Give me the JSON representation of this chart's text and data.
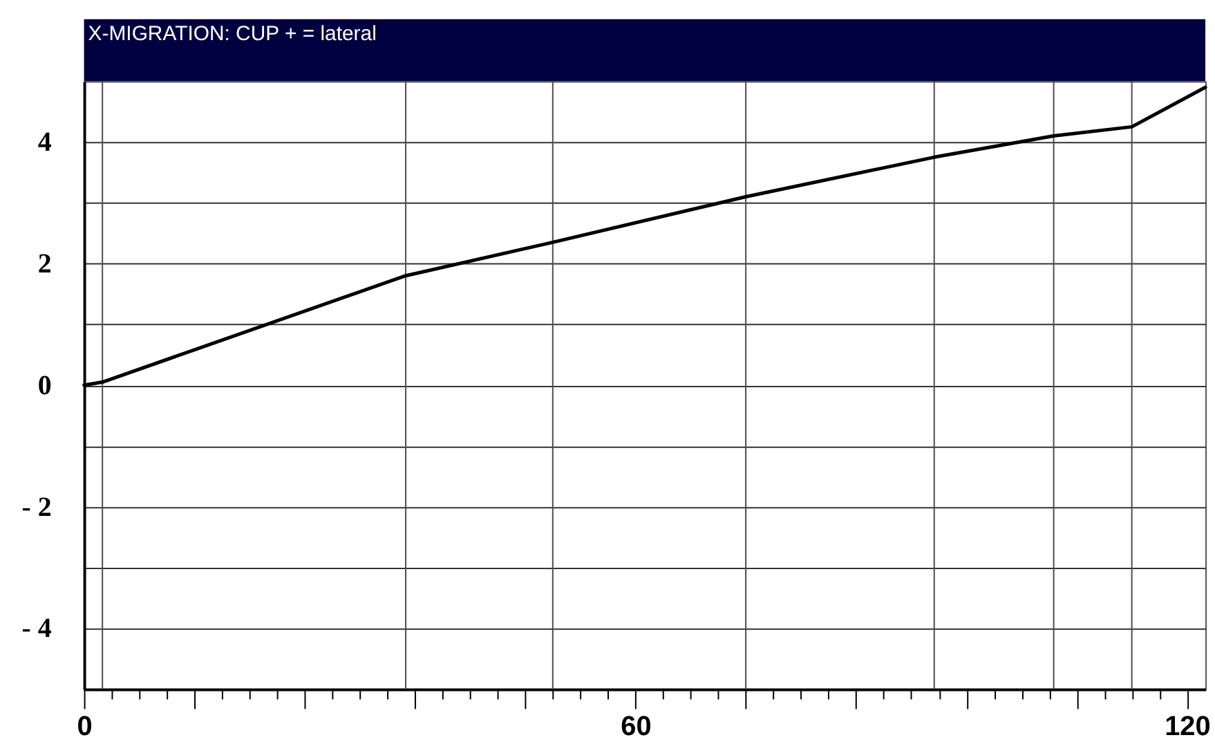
{
  "chart_data": {
    "type": "line",
    "title": "X-MIGRATION: CUP + = lateral",
    "x": [
      0,
      2,
      35,
      51,
      72,
      92.5,
      105.5,
      114,
      122
    ],
    "series": [
      {
        "color": "#000000",
        "values": [
          0,
          0.05,
          1.8,
          2.35,
          3.1,
          3.75,
          4.1,
          4.25,
          4.9
        ]
      }
    ],
    "xlim": [
      0,
      122
    ],
    "xticks": [
      0,
      {
        "value": 3,
        "label": null
      },
      {
        "value": 6,
        "label": null
      },
      {
        "value": 9,
        "label": null
      },
      {
        "value": 12,
        "label": null
      },
      {
        "value": 15,
        "label": null
      },
      {
        "value": 18,
        "label": null
      },
      {
        "value": 21,
        "label": null
      },
      {
        "value": 24,
        "label": null
      },
      {
        "value": 27,
        "label": null
      },
      {
        "value": 30,
        "label": null
      },
      {
        "value": 33,
        "label": null
      },
      {
        "value": 36,
        "label": null
      },
      {
        "value": 39,
        "label": null
      },
      {
        "value": 42,
        "label": null
      },
      {
        "value": 45,
        "label": null
      },
      {
        "value": 48,
        "label": null
      },
      {
        "value": 51,
        "label": null
      },
      {
        "value": 54,
        "label": null
      },
      {
        "value": 57,
        "label": null
      },
      60,
      {
        "value": 63,
        "label": null
      },
      {
        "value": 66,
        "label": null
      },
      {
        "value": 69,
        "label": null
      },
      {
        "value": 72,
        "label": null
      },
      {
        "value": 75,
        "label": null
      },
      {
        "value": 78,
        "label": null
      },
      {
        "value": 81,
        "label": null
      },
      {
        "value": 84,
        "label": null
      },
      {
        "value": 87,
        "label": null
      },
      {
        "value": 90,
        "label": null
      },
      {
        "value": 93,
        "label": null
      },
      {
        "value": 96,
        "label": null
      },
      {
        "value": 99,
        "label": null
      },
      {
        "value": 102,
        "label": null
      },
      {
        "value": 105,
        "label": null
      },
      {
        "value": 108,
        "label": null
      },
      {
        "value": 111,
        "label": null
      },
      {
        "value": 114,
        "label": null
      },
      {
        "value": 117,
        "label": null
      },
      120
    ],
    "ylim": [
      -5,
      5
    ],
    "yticks": [
      {
        "value": -4,
        "label": "- 4"
      },
      {
        "value": -3,
        "label": null
      },
      {
        "value": -2,
        "label": "- 2"
      },
      {
        "value": -1,
        "label": null
      },
      0,
      {
        "value": 1,
        "label": null
      },
      2,
      {
        "value": 3,
        "label": null
      },
      4
    ],
    "grid": "y",
    "ref_lines": [
      {
        "axis": "x",
        "value": 2,
        "color": "#4d4d4d"
      },
      {
        "axis": "x",
        "value": 35,
        "color": "#4d4d4d"
      },
      {
        "axis": "x",
        "value": 51,
        "color": "#4d4d4d"
      },
      {
        "axis": "x",
        "value": 72,
        "color": "#4d4d4d"
      },
      {
        "axis": "x",
        "value": 92.5,
        "color": "#4d4d4d"
      },
      {
        "axis": "x",
        "value": 105.5,
        "color": "#4d4d4d"
      },
      {
        "axis": "x",
        "value": 114,
        "color": "#4d4d4d"
      }
    ]
  }
}
